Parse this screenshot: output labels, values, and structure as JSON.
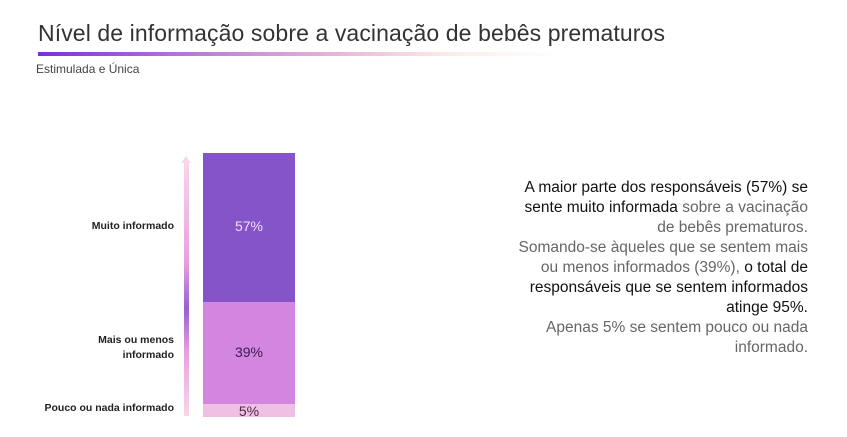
{
  "header": {
    "title": "Nível de informação sobre a vacinação de bebês prematuros",
    "subtitle": "Estimulada e Única"
  },
  "chart_data": {
    "type": "bar",
    "stacked": true,
    "title": "Nível de informação sobre a vacinação de bebês prematuros",
    "categories": [
      "Pouco ou nada informado",
      "Mais ou menos informado",
      "Muito informado"
    ],
    "values": [
      5,
      39,
      57
    ],
    "labels": [
      "5%",
      "39%",
      "57%"
    ],
    "colors": [
      "#f0c0e4",
      "#d286e0",
      "#8454c8"
    ],
    "label_colors": [
      "#4a2a4a",
      "#3a1a4a",
      "#f0e0ff"
    ]
  },
  "text": {
    "lines": [
      [
        {
          "t": "A maior parte dos responsáveis (57%) se",
          "s": "dark"
        }
      ],
      [
        {
          "t": "sente muito informada",
          "s": "dark"
        },
        {
          "t": " sobre a vacinação",
          "s": "light"
        }
      ],
      [
        {
          "t": "de bebês prematuros.",
          "s": "light"
        }
      ],
      [
        {
          "t": "Somando-se àqueles que se sentem mais",
          "s": "light"
        }
      ],
      [
        {
          "t": "ou menos informados (39%), ",
          "s": "light"
        },
        {
          "t": "o total de",
          "s": "dark"
        }
      ],
      [
        {
          "t": "responsáveis que se sentem informados",
          "s": "dark"
        }
      ],
      [
        {
          "t": "atinge 95%.",
          "s": "dark"
        }
      ],
      [
        {
          "t": "Apenas 5% se sentem pouco ou nada",
          "s": "light"
        }
      ],
      [
        {
          "t": "informado.",
          "s": "light"
        }
      ]
    ]
  }
}
